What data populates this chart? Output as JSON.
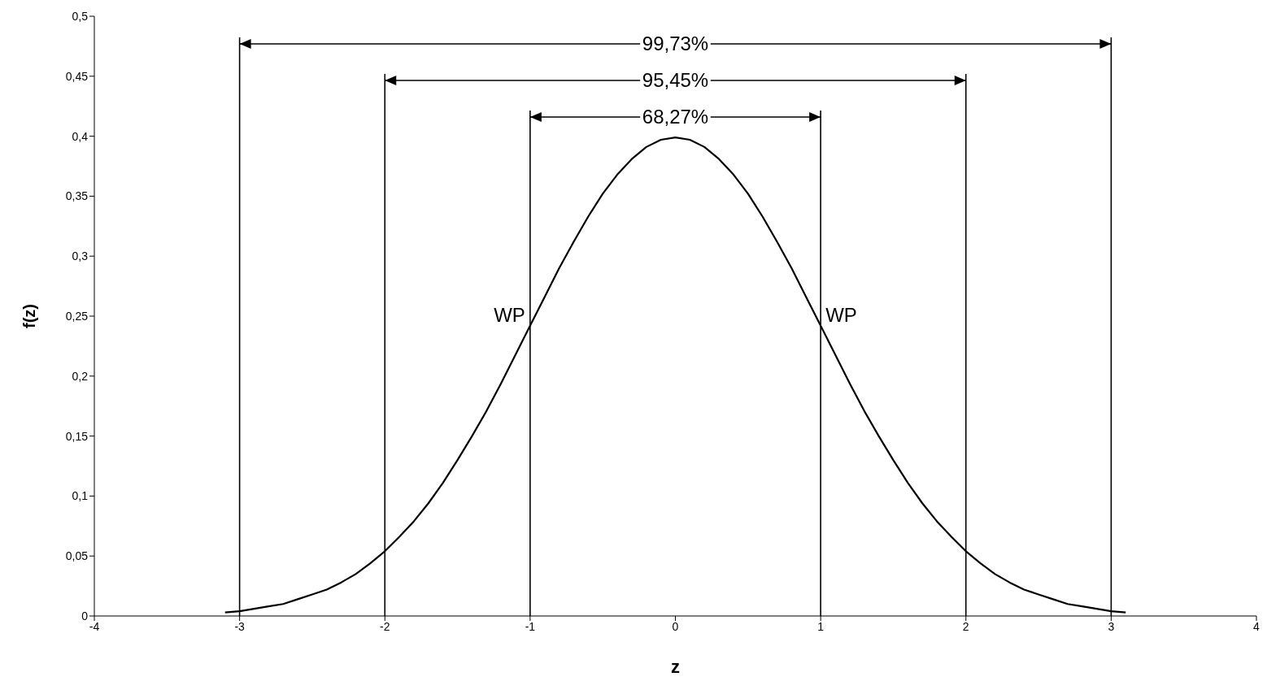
{
  "chart_data": {
    "type": "line",
    "xlabel": "z",
    "ylabel": "f(z)",
    "xlim": [
      -4,
      4
    ],
    "xticks": [
      -4,
      -3,
      -2,
      -1,
      0,
      1,
      2,
      3,
      4
    ],
    "ylim": [
      0,
      0.5
    ],
    "yticks": [
      0,
      {
        "value": 0.05,
        "label": "0,05"
      },
      {
        "value": 0.1,
        "label": "0,1"
      },
      {
        "value": 0.15,
        "label": "0,15"
      },
      {
        "value": 0.2,
        "label": "0,2"
      },
      {
        "value": 0.25,
        "label": "0,25"
      },
      {
        "value": 0.3,
        "label": "0,3"
      },
      {
        "value": 0.35,
        "label": "0,35"
      },
      {
        "value": 0.4,
        "label": "0,4"
      },
      {
        "value": 0.45,
        "label": "0,45"
      },
      {
        "value": 0.5,
        "label": "0,5"
      }
    ],
    "grid": false,
    "marker": "none",
    "series": [
      {
        "color": "#000000",
        "x": [
          -3.1,
          -3,
          -2.9,
          -2.8,
          -2.7,
          -2.6,
          -2.5,
          -2.4,
          -2.3,
          -2.2,
          -2.1,
          -2,
          -1.9,
          -1.8,
          -1.7,
          -1.6,
          -1.5,
          -1.4,
          -1.3,
          -1.2,
          -1.1,
          -1,
          -0.9,
          -0.8,
          -0.7,
          -0.6,
          -0.5,
          -0.4,
          -0.3,
          -0.2,
          -0.1,
          0,
          0.1,
          0.2,
          0.3,
          0.4,
          0.5,
          0.6,
          0.7,
          0.8,
          0.9,
          1,
          1.1,
          1.2,
          1.3,
          1.4,
          1.5,
          1.6,
          1.7,
          1.8,
          1.9,
          2,
          2.1,
          2.2,
          2.3,
          2.4,
          2.5,
          2.6,
          2.7,
          2.8,
          2.9,
          3,
          3.1
        ],
        "values": [
          0.003,
          0.004,
          0.006,
          0.008,
          0.01,
          0.014,
          0.018,
          0.022,
          0.028,
          0.035,
          0.044,
          0.054,
          0.066,
          0.079,
          0.094,
          0.111,
          0.13,
          0.15,
          0.171,
          0.194,
          0.218,
          0.242,
          0.266,
          0.29,
          0.312,
          0.333,
          0.352,
          0.368,
          0.381,
          0.391,
          0.397,
          0.399,
          0.397,
          0.391,
          0.381,
          0.368,
          0.352,
          0.333,
          0.312,
          0.29,
          0.266,
          0.242,
          0.218,
          0.194,
          0.171,
          0.15,
          0.13,
          0.111,
          0.094,
          0.079,
          0.066,
          0.054,
          0.044,
          0.035,
          0.028,
          0.022,
          0.018,
          0.014,
          0.01,
          0.008,
          0.006,
          0.004,
          0.003
        ]
      }
    ],
    "ref_lines": [
      {
        "axis": "x",
        "value": -3,
        "color": "#000000"
      },
      {
        "axis": "x",
        "value": 3,
        "color": "#000000"
      },
      {
        "axis": "x",
        "value": -2,
        "color": "#000000"
      },
      {
        "axis": "x",
        "value": 2,
        "color": "#000000"
      },
      {
        "axis": "x",
        "value": -1,
        "color": "#000000"
      },
      {
        "axis": "x",
        "value": 1,
        "color": "#000000"
      }
    ],
    "annotations": [
      "99,73%",
      "95,45%",
      "68,27%",
      {
        "text": "WP",
        "x": -1,
        "y": 0.251
      },
      {
        "text": "WP",
        "x": 1,
        "y": 0.251
      }
    ]
  }
}
